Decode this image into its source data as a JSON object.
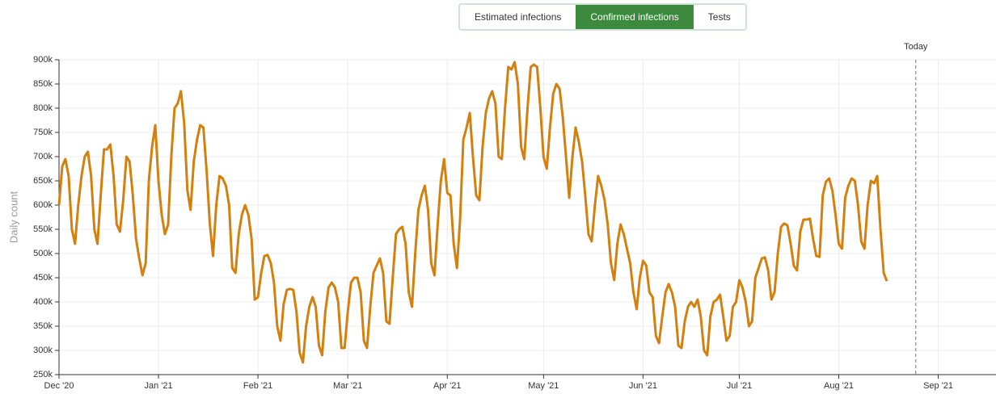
{
  "tabs": [
    "Estimated infections",
    "Confirmed infections",
    "Tests"
  ],
  "active_tab": 1,
  "chart_data": {
    "type": "line",
    "ylabel": "Daily count",
    "annotation": {
      "x": 267,
      "label": "Today"
    },
    "xlim": [
      0,
      292
    ],
    "xticks": [
      {
        "value": 0,
        "label": "Dec '20"
      },
      {
        "value": 31,
        "label": "Jan '21"
      },
      {
        "value": 62,
        "label": "Feb '21"
      },
      {
        "value": 90,
        "label": "Mar '21"
      },
      {
        "value": 121,
        "label": "Apr '21"
      },
      {
        "value": 151,
        "label": "May '21"
      },
      {
        "value": 182,
        "label": "Jun '21"
      },
      {
        "value": 212,
        "label": "Jul '21"
      },
      {
        "value": 243,
        "label": "Aug '21"
      },
      {
        "value": 274,
        "label": "Sep '21"
      }
    ],
    "ylim": [
      250000,
      900000
    ],
    "yticks": [
      {
        "value": 250000,
        "label": "250k"
      },
      {
        "value": 300000,
        "label": "300k"
      },
      {
        "value": 350000,
        "label": "350k"
      },
      {
        "value": 400000,
        "label": "400k"
      },
      {
        "value": 450000,
        "label": "450k"
      },
      {
        "value": 500000,
        "label": "500k"
      },
      {
        "value": 550000,
        "label": "550k"
      },
      {
        "value": 600000,
        "label": "600k"
      },
      {
        "value": 650000,
        "label": "650k"
      },
      {
        "value": 700000,
        "label": "700k"
      },
      {
        "value": 750000,
        "label": "750k"
      },
      {
        "value": 800000,
        "label": "800k"
      },
      {
        "value": 850000,
        "label": "850k"
      },
      {
        "value": 900000,
        "label": "900k"
      }
    ],
    "grid": true,
    "x": [
      0,
      1,
      2,
      3,
      4,
      5,
      6,
      7,
      8,
      9,
      10,
      11,
      12,
      13,
      14,
      15,
      16,
      17,
      18,
      19,
      20,
      21,
      22,
      23,
      24,
      25,
      26,
      27,
      28,
      29,
      30,
      31,
      32,
      33,
      34,
      35,
      36,
      37,
      38,
      39,
      40,
      41,
      42,
      43,
      44,
      45,
      46,
      47,
      48,
      49,
      50,
      51,
      52,
      53,
      54,
      55,
      56,
      57,
      58,
      59,
      60,
      61,
      62,
      63,
      64,
      65,
      66,
      67,
      68,
      69,
      70,
      71,
      72,
      73,
      74,
      75,
      76,
      77,
      78,
      79,
      80,
      81,
      82,
      83,
      84,
      85,
      86,
      87,
      88,
      89,
      90,
      91,
      92,
      93,
      94,
      95,
      96,
      97,
      98,
      99,
      100,
      101,
      102,
      103,
      104,
      105,
      106,
      107,
      108,
      109,
      110,
      111,
      112,
      113,
      114,
      115,
      116,
      117,
      118,
      119,
      120,
      121,
      122,
      123,
      124,
      125,
      126,
      127,
      128,
      129,
      130,
      131,
      132,
      133,
      134,
      135,
      136,
      137,
      138,
      139,
      140,
      141,
      142,
      143,
      144,
      145,
      146,
      147,
      148,
      149,
      150,
      151,
      152,
      153,
      154,
      155,
      156,
      157,
      158,
      159,
      160,
      161,
      162,
      163,
      164,
      165,
      166,
      167,
      168,
      169,
      170,
      171,
      172,
      173,
      174,
      175,
      176,
      177,
      178,
      179,
      180,
      181,
      182,
      183,
      184,
      185,
      186,
      187,
      188,
      189,
      190,
      191,
      192,
      193,
      194,
      195,
      196,
      197,
      198,
      199,
      200,
      201,
      202,
      203,
      204,
      205,
      206,
      207,
      208,
      209,
      210,
      211,
      212,
      213,
      214,
      215,
      216,
      217,
      218,
      219,
      220,
      221,
      222,
      223,
      224,
      225,
      226,
      227,
      228,
      229,
      230,
      231,
      232,
      233,
      234,
      235,
      236,
      237,
      238,
      239,
      240,
      241,
      242,
      243,
      244,
      245,
      246,
      247,
      248,
      249,
      250,
      251,
      252,
      253,
      254,
      255,
      256,
      257,
      258
    ],
    "series": [
      {
        "color": "#d4800f",
        "values": [
          600000,
          680000,
          695000,
          660000,
          550000,
          520000,
          600000,
          660000,
          700000,
          710000,
          660000,
          550000,
          520000,
          620000,
          715000,
          715000,
          725000,
          660000,
          560000,
          545000,
          610000,
          700000,
          690000,
          620000,
          530000,
          490000,
          455000,
          480000,
          650000,
          720000,
          765000,
          650000,
          580000,
          540000,
          560000,
          700000,
          800000,
          810000,
          835000,
          770000,
          630000,
          590000,
          690000,
          735000,
          765000,
          760000,
          670000,
          560000,
          495000,
          600000,
          660000,
          655000,
          640000,
          600000,
          470000,
          460000,
          540000,
          580000,
          600000,
          580000,
          530000,
          405000,
          410000,
          460000,
          495000,
          497000,
          480000,
          440000,
          350000,
          320000,
          395000,
          425000,
          427000,
          425000,
          380000,
          295000,
          275000,
          350000,
          390000,
          410000,
          390000,
          310000,
          290000,
          380000,
          430000,
          440000,
          430000,
          400000,
          305000,
          305000,
          380000,
          440000,
          450000,
          450000,
          420000,
          320000,
          305000,
          390000,
          460000,
          475000,
          490000,
          460000,
          360000,
          355000,
          450000,
          540000,
          550000,
          555000,
          520000,
          420000,
          390000,
          500000,
          590000,
          620000,
          640000,
          590000,
          480000,
          455000,
          560000,
          650000,
          695000,
          625000,
          620000,
          520000,
          470000,
          570000,
          735000,
          760000,
          790000,
          700000,
          620000,
          610000,
          720000,
          790000,
          820000,
          835000,
          810000,
          700000,
          695000,
          800000,
          885000,
          880000,
          895000,
          850000,
          720000,
          695000,
          800000,
          885000,
          890000,
          885000,
          800000,
          700000,
          675000,
          760000,
          830000,
          850000,
          840000,
          780000,
          700000,
          615000,
          700000,
          760000,
          730000,
          690000,
          620000,
          540000,
          525000,
          600000,
          660000,
          640000,
          610000,
          560000,
          480000,
          445000,
          520000,
          560000,
          540000,
          510000,
          480000,
          420000,
          385000,
          450000,
          485000,
          475000,
          420000,
          410000,
          330000,
          315000,
          370000,
          420000,
          437000,
          420000,
          390000,
          310000,
          305000,
          360000,
          390000,
          400000,
          390000,
          405000,
          370000,
          300000,
          290000,
          370000,
          400000,
          405000,
          415000,
          370000,
          320000,
          330000,
          390000,
          400000,
          445000,
          430000,
          400000,
          350000,
          360000,
          450000,
          470000,
          490000,
          492000,
          465000,
          405000,
          420000,
          500000,
          555000,
          562000,
          558000,
          520000,
          475000,
          465000,
          545000,
          570000,
          570000,
          572000,
          530000,
          495000,
          493000,
          620000,
          648000,
          655000,
          630000,
          580000,
          520000,
          510000,
          615000,
          640000,
          655000,
          650000,
          600000,
          525000,
          510000,
          600000,
          650000,
          645000,
          660000,
          550000,
          460000,
          443000
        ]
      }
    ]
  }
}
